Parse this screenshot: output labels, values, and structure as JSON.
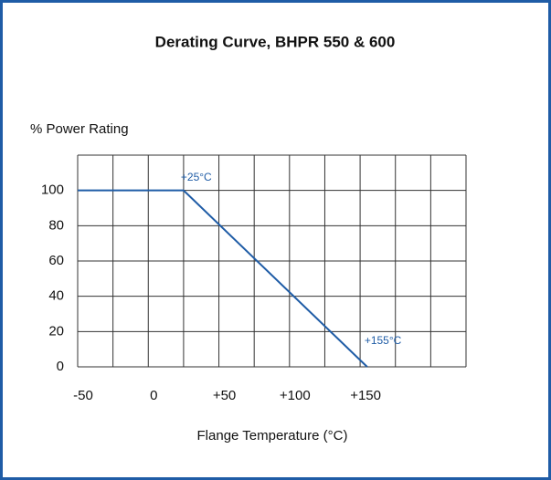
{
  "chart_data": {
    "type": "line",
    "title": "Derating Curve, BHPR 550 & 600",
    "ylabel": "% Power Rating",
    "xlabel": "Flange Temperature (°C)",
    "x": [
      -50,
      25,
      155
    ],
    "series": [
      {
        "name": null,
        "color": "#1f5ca6",
        "values": [
          100,
          100,
          0
        ]
      }
    ],
    "xlim": [
      -50,
      225
    ],
    "xticks": [
      -50,
      0,
      {
        "value": 50,
        "label": "+50"
      },
      {
        "value": 100,
        "label": "+100"
      },
      {
        "value": 150,
        "label": "+150"
      }
    ],
    "xgrid": [
      -50,
      -25,
      0,
      25,
      50,
      75,
      100,
      125,
      150,
      175,
      200,
      225
    ],
    "ylim": [
      0,
      120
    ],
    "yticks": [
      0,
      20,
      40,
      60,
      80,
      100
    ],
    "ygrid": [
      0,
      20,
      40,
      60,
      80,
      100,
      120
    ],
    "grid": true,
    "annotations": [
      {
        "text": "+25°C",
        "x": 25,
        "y": 100
      },
      {
        "text": "+155°C",
        "x": 155,
        "y": 0
      }
    ],
    "border_color": "#1f5ca6"
  }
}
